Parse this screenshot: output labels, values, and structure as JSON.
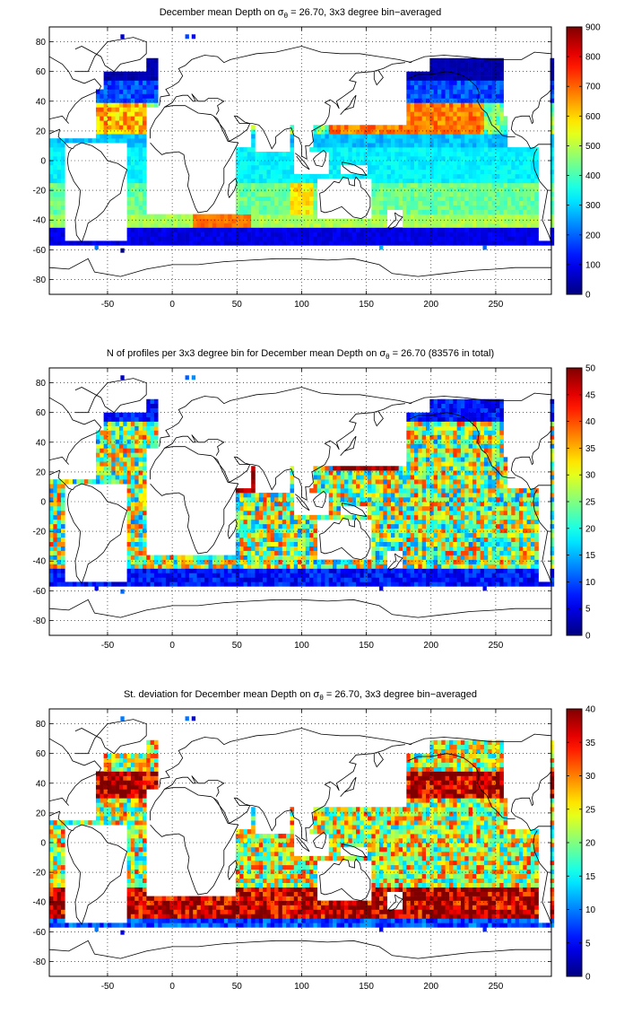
{
  "colormap": "jet",
  "panels": [
    {
      "id": "mean",
      "title_pre": "December mean Depth on σ",
      "title_sub": "θ",
      "title_post": " = 26.70, 3x3 degree bin−averaged",
      "colorbar": {
        "min": 0,
        "max": 900,
        "ticks": [
          0,
          100,
          200,
          300,
          400,
          500,
          600,
          700,
          800,
          900
        ]
      },
      "field": "mean"
    },
    {
      "id": "count",
      "title_pre": "N of profiles per 3x3 degree bin for December mean Depth on σ",
      "title_sub": "θ",
      "title_post": " = 26.70 (83576 in total)",
      "colorbar": {
        "min": 0,
        "max": 50,
        "ticks": [
          0,
          5,
          10,
          15,
          20,
          25,
          30,
          35,
          40,
          45,
          50
        ]
      },
      "field": "count"
    },
    {
      "id": "std",
      "title_pre": "St. deviation for December mean Depth on σ",
      "title_sub": "θ",
      "title_post": " = 26.70, 3x3 degree bin−averaged",
      "colorbar": {
        "min": 0,
        "max": 40,
        "ticks": [
          0,
          5,
          10,
          15,
          20,
          25,
          30,
          35,
          40
        ]
      },
      "field": "std"
    }
  ],
  "axes": {
    "xlim": [
      -95,
      293
    ],
    "ylim": [
      -90,
      90
    ],
    "xticks": [
      -50,
      0,
      50,
      100,
      150,
      200,
      250
    ],
    "yticks": [
      -80,
      -60,
      -40,
      -20,
      0,
      20,
      40,
      60,
      80
    ],
    "bin_size_deg": 3,
    "grid": "dotted"
  }
}
